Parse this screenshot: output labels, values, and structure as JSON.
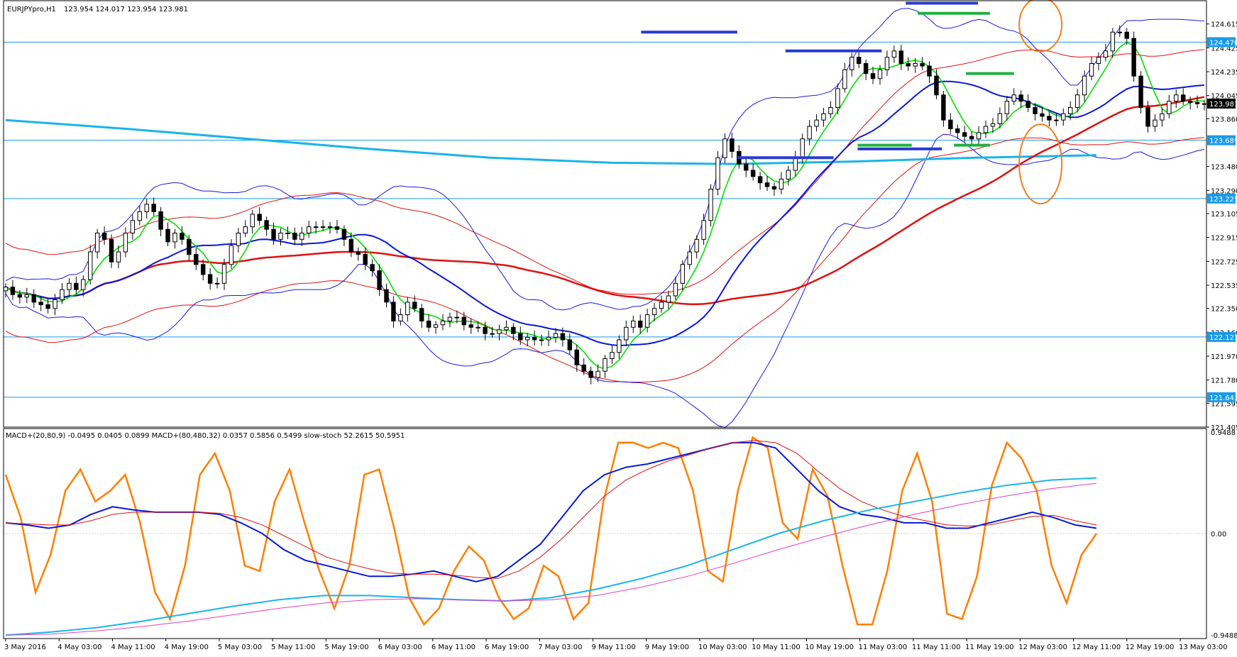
{
  "chart_data": [
    {
      "type": "candlestick",
      "title": "EURJPYpro,H1",
      "ohlc_readout": "123.954 124.017 123.954 123.981",
      "ylim": [
        121.405,
        124.8
      ],
      "yticks": [
        "124.615",
        "124.425",
        "124.235",
        "124.045",
        "123.860",
        "123.480",
        "123.290",
        "123.105",
        "122.915",
        "122.725",
        "122.535",
        "122.350",
        "122.160",
        "121.970",
        "121.780",
        "121.595",
        "121.405"
      ],
      "last_price": {
        "label": "123.981",
        "value": 123.981
      },
      "horizontal_lines": [
        {
          "label": "124.470",
          "value": 124.47
        },
        {
          "label": "123.689",
          "value": 123.689
        },
        {
          "label": "123.225",
          "value": 123.225
        },
        {
          "label": "122.123",
          "value": 122.123
        },
        {
          "label": "121.643",
          "value": 121.643
        }
      ],
      "series_close": [
        122.52,
        122.46,
        122.44,
        122.46,
        122.4,
        122.38,
        122.35,
        122.42,
        122.5,
        122.55,
        122.5,
        122.58,
        122.8,
        122.95,
        122.9,
        122.72,
        122.8,
        122.95,
        123.05,
        123.12,
        123.18,
        123.12,
        122.98,
        122.88,
        122.95,
        122.9,
        122.78,
        122.7,
        122.62,
        122.55,
        122.55,
        122.7,
        122.85,
        122.95,
        123.0,
        123.1,
        123.05,
        122.98,
        122.9,
        122.95,
        122.95,
        122.9,
        122.95,
        123.0,
        123.0,
        123.0,
        123.0,
        122.98,
        122.9,
        122.8,
        122.78,
        122.7,
        122.65,
        122.5,
        122.4,
        122.25,
        122.3,
        122.4,
        122.35,
        122.25,
        122.2,
        122.22,
        122.25,
        122.28,
        122.28,
        122.22,
        122.2,
        122.2,
        122.15,
        122.15,
        122.18,
        122.2,
        122.15,
        122.1,
        122.12,
        122.1,
        122.1,
        122.12,
        122.15,
        122.1,
        122.02,
        121.9,
        121.85,
        121.8,
        121.85,
        121.95,
        122.0,
        122.1,
        122.2,
        122.25,
        122.2,
        122.3,
        122.35,
        122.4,
        122.45,
        122.55,
        122.7,
        122.8,
        122.9,
        123.05,
        123.3,
        123.55,
        123.7,
        123.6,
        123.5,
        123.45,
        123.4,
        123.35,
        123.32,
        123.3,
        123.38,
        123.45,
        123.55,
        123.7,
        123.8,
        123.85,
        123.9,
        123.95,
        124.1,
        124.25,
        124.35,
        124.3,
        124.22,
        124.18,
        124.25,
        124.35,
        124.4,
        124.3,
        124.28,
        124.3,
        124.28,
        124.2,
        124.05,
        123.85,
        123.78,
        123.75,
        123.72,
        123.7,
        123.75,
        123.8,
        123.82,
        123.9,
        124.0,
        124.05,
        124.0,
        123.95,
        123.9,
        123.88,
        123.85,
        123.85,
        123.9,
        123.95,
        124.05,
        124.2,
        124.3,
        124.35,
        124.4,
        124.55,
        124.55,
        124.5,
        124.2,
        123.95,
        123.8,
        123.85,
        123.9,
        124.0,
        124.05,
        124.0,
        123.99,
        123.98,
        123.98
      ],
      "indicators": [
        {
          "name": "MA short",
          "color": "#00e000"
        },
        {
          "name": "MA mid",
          "color": "#0a18d8"
        },
        {
          "name": "MA long",
          "color": "#e01010"
        },
        {
          "name": "MA 480",
          "color": "#1ab4e8",
          "values": [
            123.85,
            123.78,
            123.7,
            123.62,
            123.55,
            123.51,
            123.5,
            123.52,
            123.55,
            123.57
          ]
        },
        {
          "name": "Bollinger",
          "color": "#1a1ae0"
        },
        {
          "name": "Envelope",
          "color": "#e01010"
        }
      ],
      "levels_blue": [
        {
          "value": 124.55,
          "from": 0.53,
          "to": 0.61
        },
        {
          "value": 124.4,
          "from": 0.65,
          "to": 0.73
        },
        {
          "value": 124.78,
          "from": 0.75,
          "to": 0.81
        },
        {
          "value": 123.62,
          "from": 0.71,
          "to": 0.78
        },
        {
          "value": 123.55,
          "from": 0.61,
          "to": 0.69
        }
      ],
      "levels_green": [
        {
          "value": 124.7,
          "from": 0.76,
          "to": 0.82
        },
        {
          "value": 124.22,
          "from": 0.8,
          "to": 0.84
        },
        {
          "value": 123.65,
          "from": 0.79,
          "to": 0.82
        },
        {
          "value": 123.65,
          "from": 0.71,
          "to": 0.755
        }
      ]
    },
    {
      "type": "line",
      "title": "MACD+(20,80,9) -0.0495 0.0405 0.0899  MACD+(80,480,32) 0.0357 0.5856 0.5499  slow-stoch 52.2615 50.5951",
      "ylim": [
        -0.9488,
        0.9488
      ],
      "yticks": [
        "0.9488",
        "0.00",
        "-0.9488"
      ],
      "series": [
        {
          "name": "slow-stoch",
          "color": "#ff7f00",
          "values": [
            0.55,
            0.15,
            -0.55,
            -0.2,
            0.4,
            0.6,
            0.3,
            0.4,
            0.55,
            0.1,
            -0.55,
            -0.8,
            -0.3,
            0.55,
            0.75,
            0.4,
            -0.3,
            -0.35,
            0.3,
            0.6,
            0.1,
            -0.35,
            -0.7,
            -0.3,
            0.55,
            0.6,
            0.05,
            -0.6,
            -0.85,
            -0.7,
            -0.35,
            -0.12,
            -0.25,
            -0.6,
            -0.8,
            -0.7,
            -0.3,
            -0.4,
            -0.8,
            -0.65,
            0.3,
            0.85,
            0.85,
            0.8,
            0.85,
            0.8,
            0.4,
            -0.35,
            -0.45,
            0.4,
            0.9,
            0.8,
            0.1,
            -0.05,
            0.6,
            0.35,
            -0.3,
            -0.85,
            -0.85,
            -0.35,
            0.4,
            0.75,
            0.3,
            -0.75,
            -0.8,
            -0.4,
            0.45,
            0.85,
            0.7,
            0.4,
            -0.3,
            -0.65,
            -0.2,
            0.0
          ]
        },
        {
          "name": "MACD+(20,80,9)",
          "color": "#0a18d8",
          "values": [
            0.1,
            0.08,
            0.05,
            0.08,
            0.18,
            0.25,
            0.22,
            0.2,
            0.2,
            0.2,
            0.18,
            0.1,
            0.0,
            -0.15,
            -0.25,
            -0.3,
            -0.35,
            -0.4,
            -0.4,
            -0.38,
            -0.35,
            -0.4,
            -0.45,
            -0.4,
            -0.25,
            -0.1,
            0.15,
            0.4,
            0.55,
            0.62,
            0.65,
            0.7,
            0.75,
            0.8,
            0.85,
            0.85,
            0.8,
            0.6,
            0.4,
            0.25,
            0.18,
            0.15,
            0.1,
            0.1,
            0.05,
            0.05,
            0.1,
            0.15,
            0.2,
            0.15,
            0.08,
            0.05
          ]
        },
        {
          "name": "MACD+(20,80,9) signal",
          "color": "#e01010",
          "values": [
            0.1,
            0.09,
            0.08,
            0.08,
            0.12,
            0.18,
            0.2,
            0.2,
            0.2,
            0.2,
            0.19,
            0.15,
            0.08,
            -0.02,
            -0.12,
            -0.22,
            -0.28,
            -0.33,
            -0.37,
            -0.38,
            -0.38,
            -0.39,
            -0.41,
            -0.42,
            -0.35,
            -0.22,
            -0.05,
            0.15,
            0.35,
            0.5,
            0.6,
            0.68,
            0.74,
            0.8,
            0.85,
            0.87,
            0.85,
            0.75,
            0.58,
            0.42,
            0.3,
            0.22,
            0.16,
            0.12,
            0.08,
            0.07,
            0.08,
            0.12,
            0.16,
            0.17,
            0.12,
            0.08
          ]
        },
        {
          "name": "MACD+(80,480,32)",
          "color": "#1ab4e8",
          "values": [
            -0.95,
            -0.92,
            -0.88,
            -0.82,
            -0.75,
            -0.68,
            -0.62,
            -0.58,
            -0.58,
            -0.6,
            -0.62,
            -0.63,
            -0.6,
            -0.52,
            -0.42,
            -0.3,
            -0.15,
            0.0,
            0.12,
            0.22,
            0.3,
            0.38,
            0.45,
            0.5,
            0.52
          ]
        },
        {
          "name": "MACD+(80,480,32) signal",
          "color": "#e040c0",
          "values": [
            -0.95,
            -0.94,
            -0.91,
            -0.87,
            -0.82,
            -0.76,
            -0.7,
            -0.65,
            -0.62,
            -0.61,
            -0.62,
            -0.63,
            -0.62,
            -0.58,
            -0.5,
            -0.4,
            -0.28,
            -0.15,
            -0.03,
            0.08,
            0.18,
            0.27,
            0.35,
            0.42,
            0.47
          ]
        }
      ]
    }
  ],
  "x_axis_labels": [
    "3 May 2016",
    "4 May 03:00",
    "4 May 11:00",
    "4 May 19:00",
    "5 May 03:00",
    "5 May 11:00",
    "5 May 19:00",
    "6 May 03:00",
    "6 May 11:00",
    "6 May 19:00",
    "7 May 03:00",
    "9 May 11:00",
    "9 May 19:00",
    "10 May 03:00",
    "10 May 11:00",
    "10 May 19:00",
    "11 May 03:00",
    "11 May 11:00",
    "11 May 19:00",
    "12 May 03:00",
    "12 May 11:00",
    "12 May 19:00",
    "13 May 03:00"
  ],
  "annotations": [
    {
      "shape": "ellipse",
      "color": "#f08020",
      "around": "124.61"
    },
    {
      "shape": "ellipse",
      "color": "#f08020",
      "around": "123.50"
    }
  ]
}
